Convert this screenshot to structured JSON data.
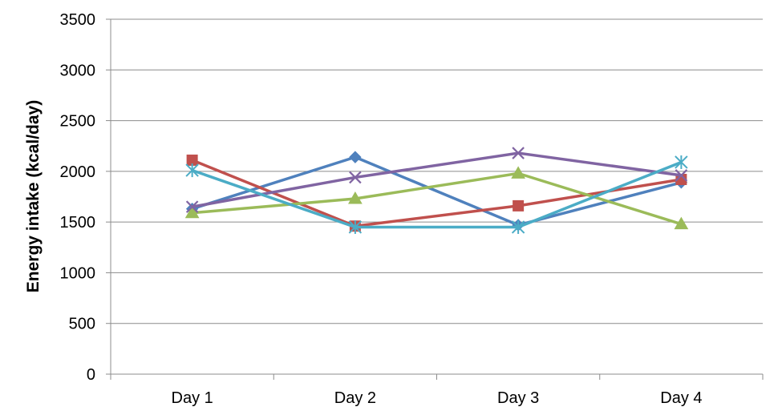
{
  "chart_data": {
    "type": "line",
    "title": "",
    "xlabel": "",
    "ylabel": "Energy intake (kcal/day)",
    "categories": [
      "Day 1",
      "Day 2",
      "Day 3",
      "Day 4"
    ],
    "ylim": [
      0,
      3500
    ],
    "yticks": [
      "0",
      "500",
      "1000",
      "1500",
      "2000",
      "2500",
      "3000",
      "3500"
    ],
    "grid": "horizontal",
    "legend": "none",
    "series": [
      {
        "color": "#4F81BD",
        "marker": "diamond",
        "values": [
          1630,
          2140,
          1470,
          1890
        ]
      },
      {
        "color": "#C0504D",
        "marker": "square",
        "values": [
          2110,
          1460,
          1660,
          1920
        ]
      },
      {
        "color": "#9BBB59",
        "marker": "triangle",
        "values": [
          1590,
          1730,
          1980,
          1480
        ]
      },
      {
        "color": "#8064A2",
        "marker": "x",
        "values": [
          1650,
          1940,
          2180,
          1960
        ]
      },
      {
        "color": "#4BACC6",
        "marker": "star",
        "values": [
          2010,
          1450,
          1450,
          2090
        ]
      }
    ]
  }
}
